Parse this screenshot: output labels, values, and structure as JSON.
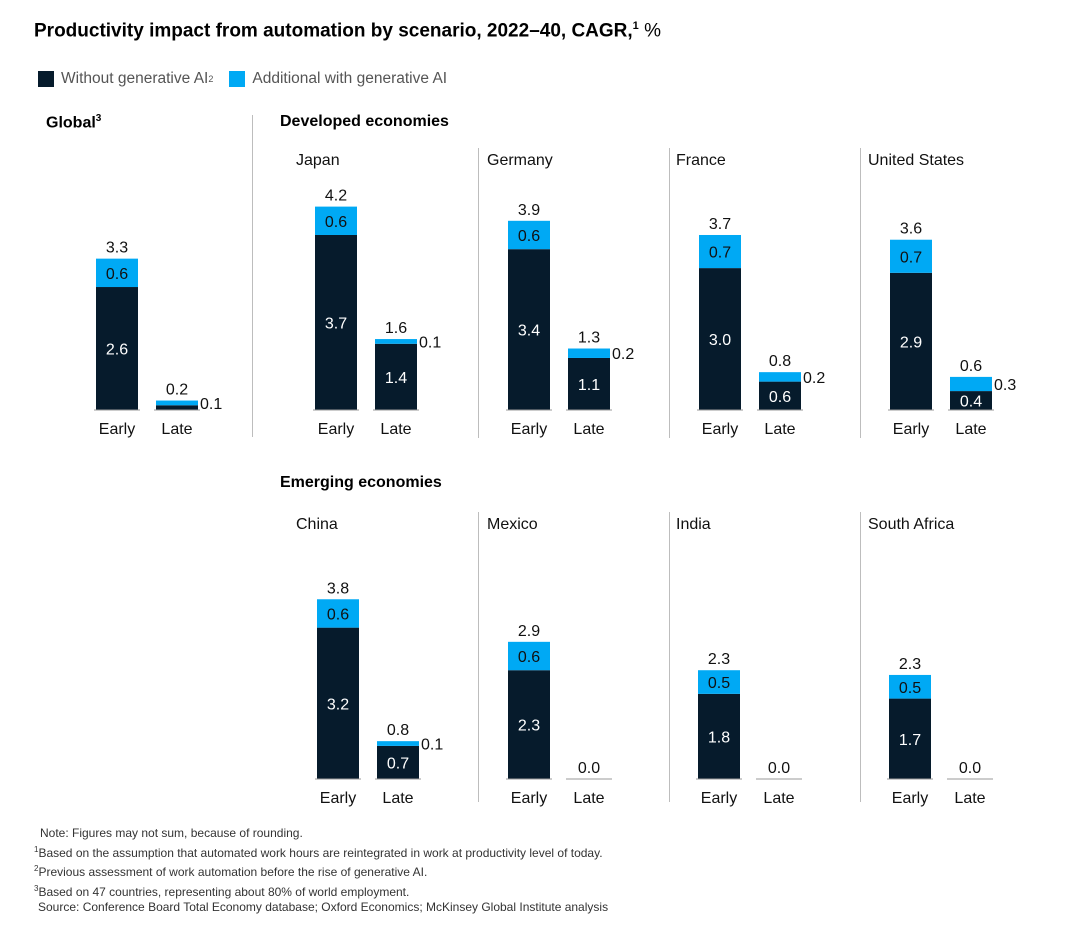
{
  "title": "Productivity impact from automation by scenario, 2022–40, CAGR,",
  "title_sup": "1",
  "title_unit": "%",
  "legend": [
    {
      "label": "Without generative AI",
      "sup": "2",
      "color": "#061b2c"
    },
    {
      "label": "Additional with generative AI",
      "sup": "",
      "color": "#00a9f4"
    }
  ],
  "groups": {
    "global": {
      "label": "Global",
      "sup": "3"
    },
    "developed": {
      "label": "Developed economies"
    },
    "emerging": {
      "label": "Emerging economies"
    }
  },
  "chart_data": {
    "type": "bar",
    "stacked": true,
    "categories": [
      "Early",
      "Late"
    ],
    "series_names": [
      "Without generative AI",
      "Additional with generative AI"
    ],
    "colors": {
      "base": "#061b2c",
      "addon": "#00a9f4"
    },
    "ylim": [
      0,
      4.2
    ],
    "panels": [
      {
        "name": "",
        "group": "global",
        "bars": [
          {
            "category": "Early",
            "base": 2.6,
            "addon": 0.6,
            "total": 3.3,
            "base_label": "2.6",
            "addon_label": "0.6",
            "total_label": "3.3"
          },
          {
            "category": "Late",
            "base": 0.1,
            "addon": 0.1,
            "total": 0.2,
            "base_label": "",
            "addon_label": "0.1",
            "total_label": "0.2"
          }
        ]
      },
      {
        "name": "Japan",
        "group": "developed",
        "bars": [
          {
            "category": "Early",
            "base": 3.7,
            "addon": 0.6,
            "total": 4.2,
            "base_label": "3.7",
            "addon_label": "0.6",
            "total_label": "4.2"
          },
          {
            "category": "Late",
            "base": 1.4,
            "addon": 0.1,
            "total": 1.6,
            "base_label": "1.4",
            "addon_label": "0.1",
            "total_label": "1.6"
          }
        ]
      },
      {
        "name": "Germany",
        "group": "developed",
        "bars": [
          {
            "category": "Early",
            "base": 3.4,
            "addon": 0.6,
            "total": 3.9,
            "base_label": "3.4",
            "addon_label": "0.6",
            "total_label": "3.9"
          },
          {
            "category": "Late",
            "base": 1.1,
            "addon": 0.2,
            "total": 1.3,
            "base_label": "1.1",
            "addon_label": "0.2",
            "total_label": "1.3"
          }
        ]
      },
      {
        "name": "France",
        "group": "developed",
        "bars": [
          {
            "category": "Early",
            "base": 3.0,
            "addon": 0.7,
            "total": 3.7,
            "base_label": "3.0",
            "addon_label": "0.7",
            "total_label": "3.7"
          },
          {
            "category": "Late",
            "base": 0.6,
            "addon": 0.2,
            "total": 0.8,
            "base_label": "0.6",
            "addon_label": "0.2",
            "total_label": "0.8"
          }
        ]
      },
      {
        "name": "United States",
        "group": "developed",
        "bars": [
          {
            "category": "Early",
            "base": 2.9,
            "addon": 0.7,
            "total": 3.6,
            "base_label": "2.9",
            "addon_label": "0.7",
            "total_label": "3.6"
          },
          {
            "category": "Late",
            "base": 0.4,
            "addon": 0.3,
            "total": 0.6,
            "base_label": "0.4",
            "addon_label": "0.3",
            "total_label": "0.6"
          }
        ]
      },
      {
        "name": "China",
        "group": "emerging",
        "bars": [
          {
            "category": "Early",
            "base": 3.2,
            "addon": 0.6,
            "total": 3.8,
            "base_label": "3.2",
            "addon_label": "0.6",
            "total_label": "3.8"
          },
          {
            "category": "Late",
            "base": 0.7,
            "addon": 0.1,
            "total": 0.8,
            "base_label": "0.7",
            "addon_label": "0.1",
            "total_label": "0.8"
          }
        ]
      },
      {
        "name": "Mexico",
        "group": "emerging",
        "bars": [
          {
            "category": "Early",
            "base": 2.3,
            "addon": 0.6,
            "total": 2.9,
            "base_label": "2.3",
            "addon_label": "0.6",
            "total_label": "2.9"
          },
          {
            "category": "Late",
            "base": 0.0,
            "addon": 0.0,
            "total": 0.0,
            "base_label": "",
            "addon_label": "",
            "total_label": "0.0"
          }
        ]
      },
      {
        "name": "India",
        "group": "emerging",
        "bars": [
          {
            "category": "Early",
            "base": 1.8,
            "addon": 0.5,
            "total": 2.3,
            "base_label": "1.8",
            "addon_label": "0.5",
            "total_label": "2.3"
          },
          {
            "category": "Late",
            "base": 0.0,
            "addon": 0.0,
            "total": 0.0,
            "base_label": "",
            "addon_label": "",
            "total_label": "0.0"
          }
        ]
      },
      {
        "name": "South Africa",
        "group": "emerging",
        "bars": [
          {
            "category": "Early",
            "base": 1.7,
            "addon": 0.5,
            "total": 2.3,
            "base_label": "1.7",
            "addon_label": "0.5",
            "total_label": "2.3"
          },
          {
            "category": "Late",
            "base": 0.0,
            "addon": 0.0,
            "total": 0.0,
            "base_label": "",
            "addon_label": "",
            "total_label": "0.0"
          }
        ]
      }
    ]
  },
  "footnotes": {
    "note": "Note: Figures may not sum, because of rounding.",
    "fn1": "Based on the assumption that automated work hours are reintegrated in work at productivity level of today.",
    "fn2": "Previous assessment of work automation before the rise of generative AI.",
    "fn3": "Based on 47 countries, representing about 80% of world employment.",
    "source": "Source: Conference Board Total Economy database; Oxford Economics; McKinsey Global Institute analysis"
  }
}
